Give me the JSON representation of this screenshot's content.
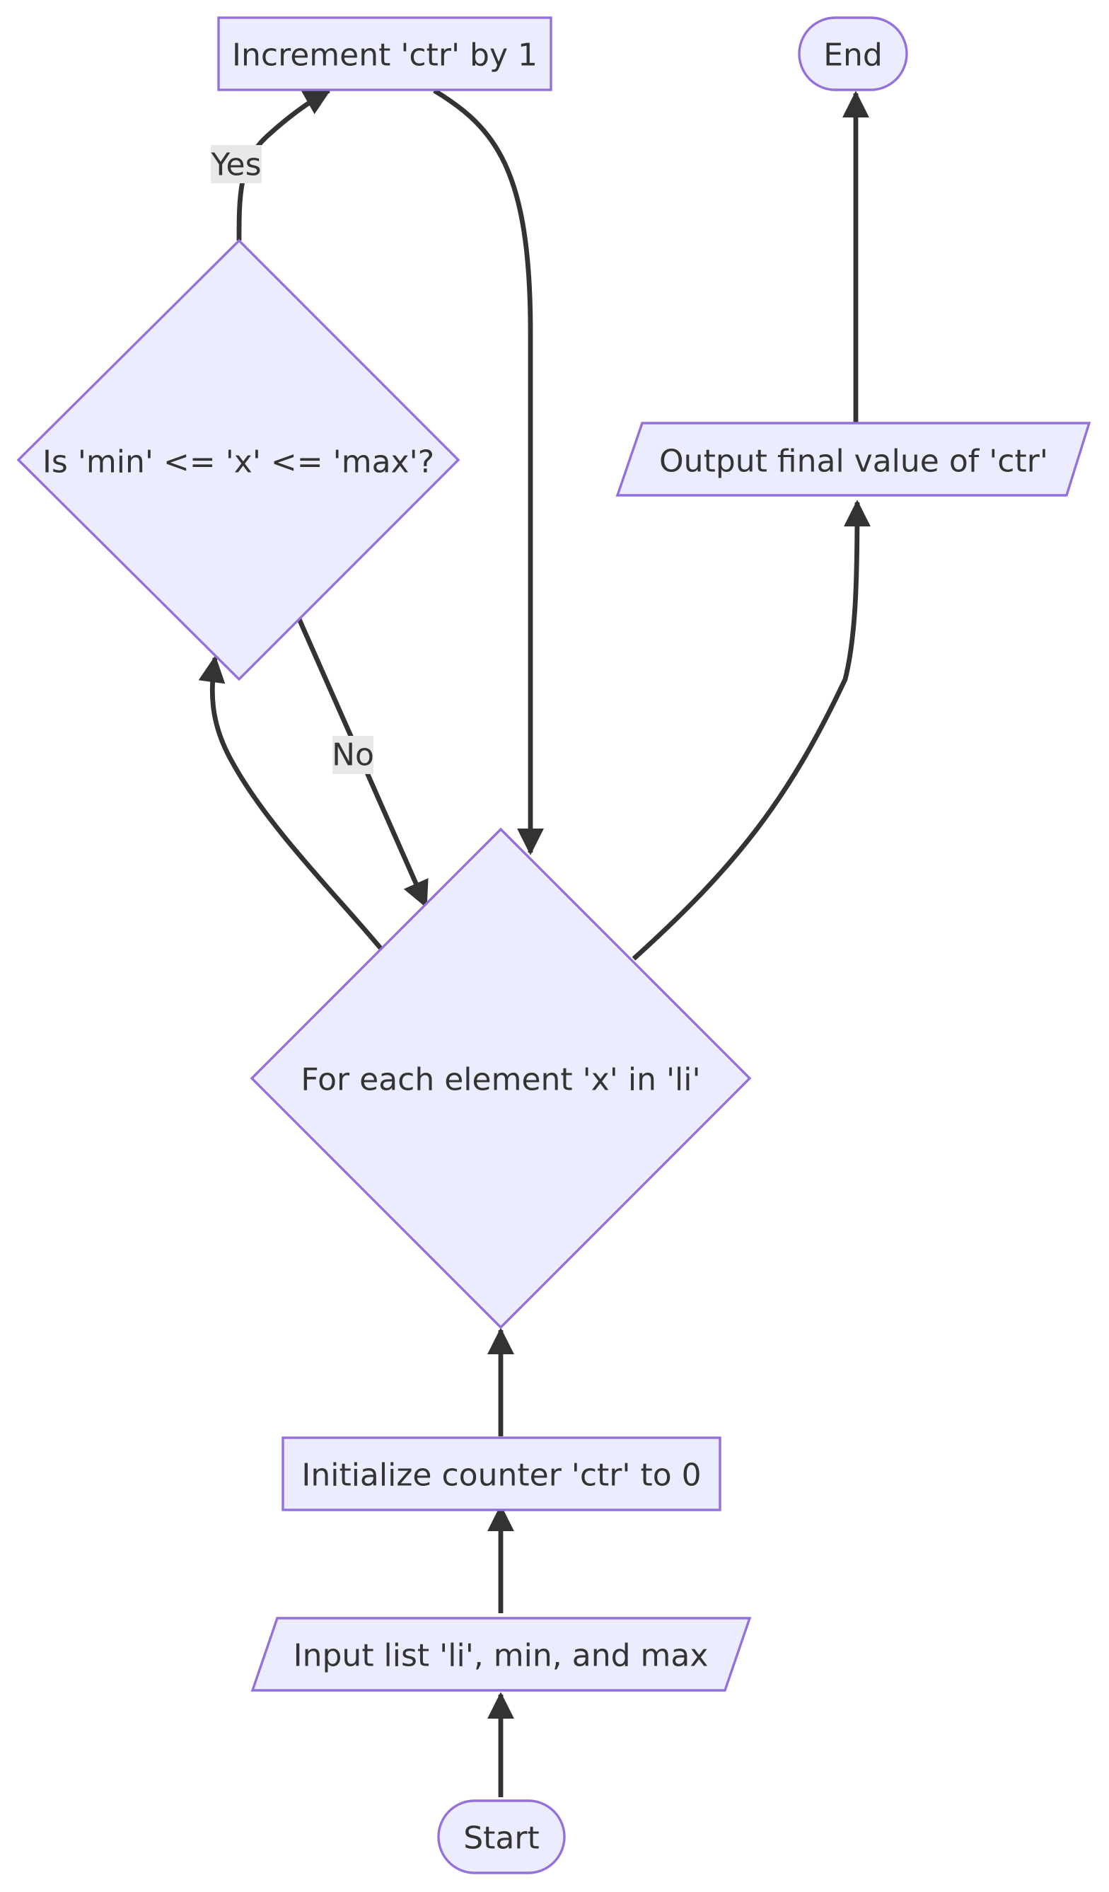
{
  "diagram": {
    "type": "flowchart",
    "nodes": {
      "increment": {
        "label": "Increment 'ctr' by 1",
        "shape": "rectangle"
      },
      "end": {
        "label": "End",
        "shape": "stadium"
      },
      "check": {
        "label": "Is 'min' <= 'x' <= 'max'?",
        "shape": "diamond"
      },
      "output": {
        "label": "Output final value of 'ctr'",
        "shape": "parallelogram"
      },
      "loop": {
        "label": "For each element 'x' in 'li'",
        "shape": "diamond"
      },
      "init": {
        "label": "Initialize counter 'ctr' to 0",
        "shape": "rectangle"
      },
      "input": {
        "label": "Input list 'li', min, and max",
        "shape": "parallelogram"
      },
      "start": {
        "label": "Start",
        "shape": "stadium"
      }
    },
    "edge_labels": {
      "yes": "Yes",
      "no": "No"
    },
    "edges": [
      {
        "from": "start",
        "to": "input"
      },
      {
        "from": "input",
        "to": "init"
      },
      {
        "from": "init",
        "to": "loop"
      },
      {
        "from": "loop",
        "to": "check"
      },
      {
        "from": "check",
        "to": "increment",
        "label": "Yes"
      },
      {
        "from": "check",
        "to": "loop",
        "label": "No"
      },
      {
        "from": "increment",
        "to": "loop"
      },
      {
        "from": "loop",
        "to": "output"
      },
      {
        "from": "output",
        "to": "end"
      }
    ],
    "colors": {
      "node_fill": "#ECECFF",
      "node_stroke": "#9370DB",
      "edge": "#333333",
      "text": "#333333",
      "label_background": "#e8e8e8"
    }
  }
}
